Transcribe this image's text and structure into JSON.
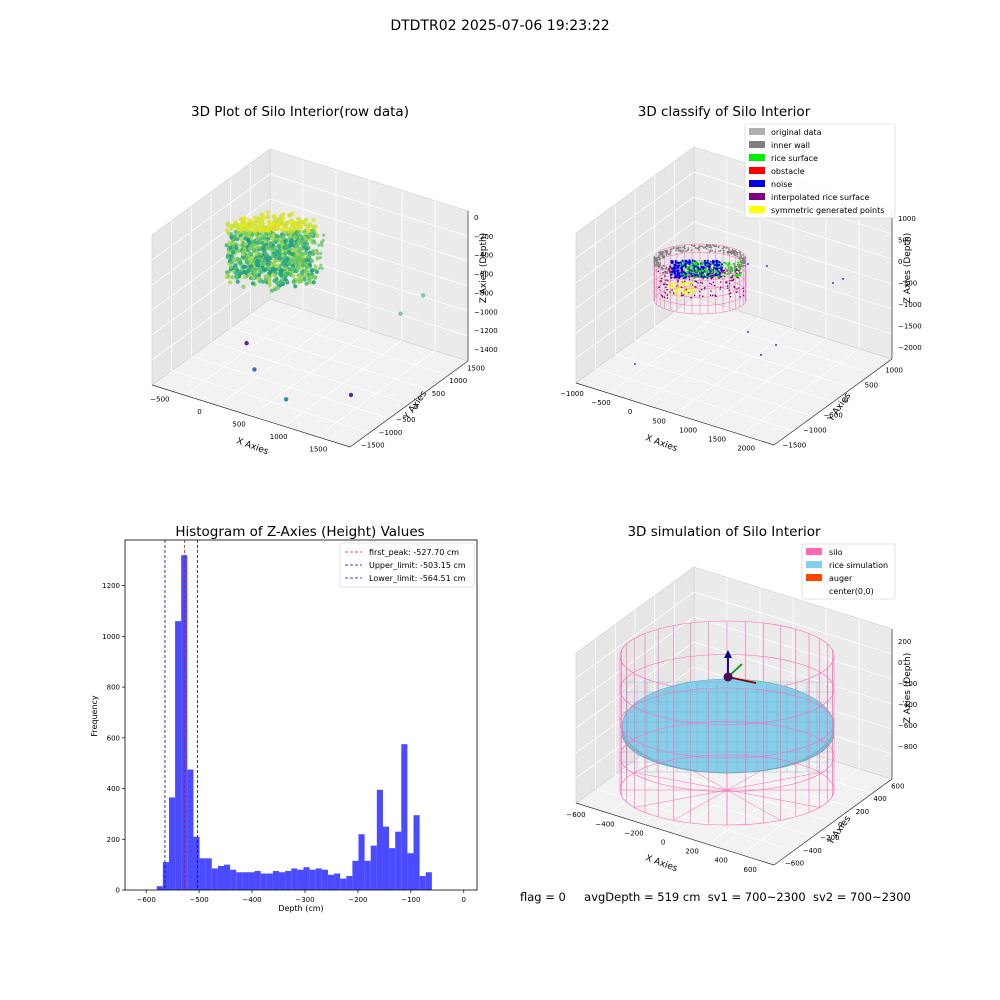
{
  "suptitle": "DTDTR02 2025-07-06 19:23:22",
  "status": {
    "flag": "flag = 0",
    "avg_depth": "avgDepth = 519 cm",
    "sv1": "sv1 = 700~2300",
    "sv2": "sv2 = 700~2300"
  },
  "colors": {
    "hist_bar": "#4a4aff",
    "first_peak": "#ff0000",
    "limits": "#0000cc",
    "original": "#b0b0b0",
    "inner_wall": "#808080",
    "rice_surface": "#00ee00",
    "obstacle": "#ff0000",
    "noise": "#0000ee",
    "interpolated": "#800080",
    "symmetric": "#ffff00",
    "silo": "#ff69b4",
    "rice_sim": "#87ceeb",
    "auger": "#ff4500"
  },
  "chart_data": [
    {
      "type": "scatter3d",
      "title": "3D Plot of Silo Interior(row data)",
      "xlabel": "X Axies",
      "ylabel": "Y Axies",
      "zlabel": "Z Axies (Depth)",
      "x_ticks": [
        "−500",
        "0",
        "500",
        "1000",
        "1500"
      ],
      "y_ticks": [
        "1500",
        "1000",
        "500",
        "0",
        "−500",
        "−1000",
        "−1500"
      ],
      "z_ticks": [
        "0",
        "−200",
        "−400",
        "−600",
        "−800",
        "−1000",
        "−1200",
        "−1400"
      ],
      "outliers": [
        {
          "x": -150,
          "y": 0,
          "z": -1400,
          "color": "#5b2d8a"
        },
        {
          "x": 600,
          "y": -1400,
          "z": -1100,
          "color": "#3a6fb0"
        },
        {
          "x": 1000,
          "y": -1400,
          "z": -1300,
          "color": "#2e8fa6"
        },
        {
          "x": 1400,
          "y": -500,
          "z": -1400,
          "color": "#5b2d8a"
        },
        {
          "x": 1700,
          "y": 200,
          "z": -700,
          "color": "#7fc3b3"
        },
        {
          "x": 1800,
          "y": 600,
          "z": -600,
          "color": "#7fc3b3"
        }
      ]
    },
    {
      "type": "scatter3d",
      "title": "3D classify of Silo Interior",
      "xlabel": "X Axies",
      "ylabel": "Y Axies",
      "zlabel": "Z Axies (Depth)",
      "x_ticks": [
        "−1000",
        "−500",
        "0",
        "500",
        "1000",
        "1500",
        "2000"
      ],
      "y_ticks": [
        "1000",
        "500",
        "0",
        "−500",
        "−1000",
        "−1500"
      ],
      "z_ticks": [
        "1000",
        "500",
        "0",
        "−500",
        "−1000",
        "−1500",
        "−2000"
      ],
      "legend": [
        {
          "label": "original data",
          "color": "#b0b0b0"
        },
        {
          "label": "inner wall",
          "color": "#808080"
        },
        {
          "label": "rice surface",
          "color": "#00ee00"
        },
        {
          "label": "obstacle",
          "color": "#ff0000"
        },
        {
          "label": "noise",
          "color": "#0000ee"
        },
        {
          "label": "interpolated rice surface",
          "color": "#800080"
        },
        {
          "label": "symmetric generated points",
          "color": "#ffff00"
        }
      ]
    },
    {
      "type": "bar",
      "title": "Histogram of Z-Axies (Height) Values",
      "xlabel": "Depth (cm)",
      "ylabel": "Frequency",
      "xlim": [
        -640,
        25
      ],
      "ylim": [
        0,
        1380
      ],
      "x_ticks": [
        -600,
        -500,
        -400,
        -300,
        -200,
        -100,
        0
      ],
      "y_ticks": [
        0,
        200,
        400,
        600,
        800,
        1000,
        1200
      ],
      "bin_edges_start": -580,
      "bin_width": 11.55,
      "values": [
        15,
        110,
        365,
        1060,
        1320,
        475,
        210,
        125,
        125,
        85,
        95,
        100,
        80,
        70,
        70,
        70,
        75,
        65,
        65,
        75,
        70,
        75,
        85,
        80,
        90,
        80,
        85,
        80,
        60,
        65,
        45,
        55,
        115,
        220,
        115,
        175,
        395,
        250,
        165,
        230,
        575,
        145,
        295,
        55,
        70
      ],
      "vlines": [
        {
          "x": -527.7,
          "label": "first_peak: -527.70 cm",
          "color": "#ff0000"
        },
        {
          "x": -503.15,
          "label": "Upper_limit: -503.15 cm",
          "color": "#0000cc"
        },
        {
          "x": -564.51,
          "label": "Lower_limit: -564.51 cm",
          "color": "#0000cc"
        }
      ]
    },
    {
      "type": "surface3d",
      "title": "3D simulation of Silo Interior",
      "xlabel": "X Axies",
      "ylabel": "Y Axies",
      "zlabel": "Z Axies (Depth)",
      "x_ticks": [
        "−600",
        "−400",
        "−200",
        "0",
        "200",
        "400",
        "600"
      ],
      "y_ticks": [
        "600",
        "400",
        "200",
        "0",
        "−200",
        "−400",
        "−600"
      ],
      "z_ticks": [
        "200",
        "0",
        "−200",
        "−400",
        "−600",
        "−800"
      ],
      "legend": [
        {
          "label": "silo",
          "color": "#ff69b4"
        },
        {
          "label": "rice simulation",
          "color": "#87ceeb"
        },
        {
          "label": "auger",
          "color": "#ff4500"
        },
        {
          "label": "center(0,0)",
          "color": ""
        }
      ]
    }
  ]
}
